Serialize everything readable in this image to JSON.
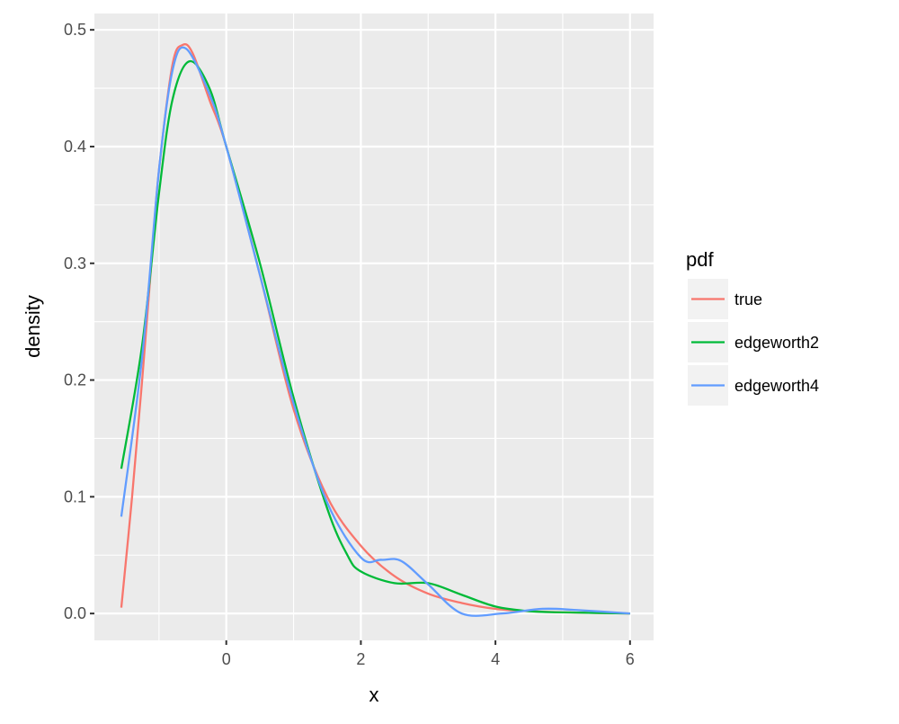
{
  "chart_data": {
    "type": "line",
    "xlabel": "x",
    "ylabel": "density",
    "xlim": [
      -1.96,
      6.35
    ],
    "ylim": [
      -0.023,
      0.514
    ],
    "x_ticks": [
      0,
      2,
      4,
      6
    ],
    "y_ticks": [
      0.0,
      0.1,
      0.2,
      0.3,
      0.4,
      0.5
    ],
    "y_tick_labels": [
      "0.0",
      "0.1",
      "0.2",
      "0.3",
      "0.4",
      "0.5"
    ],
    "grid": true,
    "legend": {
      "title": "pdf",
      "placement": "right"
    },
    "series": [
      {
        "name": "true",
        "color": "#F8766D",
        "x": [
          -1.56,
          -1.4,
          -1.25,
          -1.1,
          -1.0,
          -0.8,
          -0.65,
          -0.5,
          -0.25,
          0,
          0.5,
          1,
          1.5,
          2,
          2.5,
          3,
          3.5,
          4,
          4.5,
          5,
          6
        ],
        "y": [
          0.005,
          0.1,
          0.2,
          0.31,
          0.38,
          0.47,
          0.487,
          0.48,
          0.44,
          0.4,
          0.29,
          0.175,
          0.1,
          0.058,
          0.032,
          0.017,
          0.009,
          0.004,
          0.002,
          0.001,
          0
        ]
      },
      {
        "name": "edgeworth2",
        "color": "#00BA38",
        "x": [
          -1.56,
          -1.25,
          -1.0,
          -0.8,
          -0.55,
          -0.25,
          0,
          0.5,
          1,
          1.5,
          1.8,
          2,
          2.5,
          3,
          3.5,
          4,
          4.5,
          5,
          6
        ],
        "y": [
          0.124,
          0.23,
          0.36,
          0.44,
          0.473,
          0.45,
          0.4,
          0.3,
          0.185,
          0.09,
          0.05,
          0.036,
          0.026,
          0.026,
          0.016,
          0.006,
          0.002,
          0.001,
          0
        ]
      },
      {
        "name": "edgeworth4",
        "color": "#619CFF",
        "x": [
          -1.56,
          -1.25,
          -1.0,
          -0.8,
          -0.6,
          -0.25,
          0,
          0.5,
          1,
          1.5,
          2,
          2.3,
          2.6,
          3,
          3.5,
          4.1,
          4.7,
          5.2,
          6
        ],
        "y": [
          0.083,
          0.22,
          0.38,
          0.465,
          0.484,
          0.445,
          0.4,
          0.29,
          0.18,
          0.095,
          0.048,
          0.046,
          0.045,
          0.025,
          0,
          0,
          0.004,
          0.003,
          0
        ]
      }
    ]
  }
}
